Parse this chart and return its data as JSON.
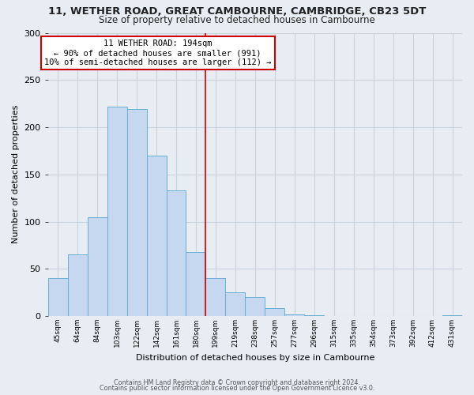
{
  "title": "11, WETHER ROAD, GREAT CAMBOURNE, CAMBRIDGE, CB23 5DT",
  "subtitle": "Size of property relative to detached houses in Cambourne",
  "xlabel": "Distribution of detached houses by size in Cambourne",
  "ylabel": "Number of detached properties",
  "bar_labels": [
    "45sqm",
    "64sqm",
    "84sqm",
    "103sqm",
    "122sqm",
    "142sqm",
    "161sqm",
    "180sqm",
    "199sqm",
    "219sqm",
    "238sqm",
    "257sqm",
    "277sqm",
    "296sqm",
    "315sqm",
    "335sqm",
    "354sqm",
    "373sqm",
    "392sqm",
    "412sqm",
    "431sqm"
  ],
  "bar_values": [
    40,
    65,
    105,
    222,
    219,
    170,
    133,
    68,
    40,
    25,
    20,
    8,
    2,
    1,
    0,
    0,
    0,
    0,
    0,
    0,
    1
  ],
  "bar_color": "#c5d8ef",
  "bar_edge_color": "#6baed6",
  "vline_x": 7.5,
  "vline_color": "#cc0000",
  "annotation_title": "11 WETHER ROAD: 194sqm",
  "annotation_line1": "← 90% of detached houses are smaller (991)",
  "annotation_line2": "10% of semi-detached houses are larger (112) →",
  "annotation_box_color": "#ffffff",
  "annotation_box_edge_color": "#cc0000",
  "ylim": [
    0,
    300
  ],
  "yticks": [
    0,
    50,
    100,
    150,
    200,
    250,
    300
  ],
  "grid_color": "#c8d4e0",
  "bg_color": "#e8edf4",
  "footer1": "Contains HM Land Registry data © Crown copyright and database right 2024.",
  "footer2": "Contains public sector information licensed under the Open Government Licence v3.0."
}
